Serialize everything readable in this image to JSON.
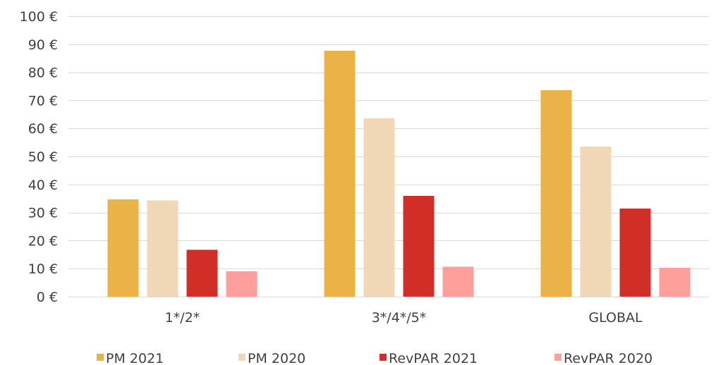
{
  "chart_data": {
    "type": "bar",
    "categories": [
      "1*/2*",
      "3*/4*/5*",
      "GLOBAL"
    ],
    "series": [
      {
        "name": "PM 2021",
        "color": "#EBB247",
        "values": [
          34.7,
          87.7,
          73.6
        ]
      },
      {
        "name": "PM 2020",
        "color": "#F0D7B6",
        "values": [
          34.3,
          63.6,
          53.5
        ]
      },
      {
        "name": "RevPAR 2021",
        "color": "#D12E28",
        "values": [
          16.7,
          35.9,
          31.4
        ]
      },
      {
        "name": "RevPAR 2020",
        "color": "#FF9F9B",
        "values": [
          9.0,
          10.7,
          10.3
        ]
      }
    ],
    "ylim": [
      0,
      100
    ],
    "y_ticks": [
      0,
      10,
      20,
      30,
      40,
      50,
      60,
      70,
      80,
      90,
      100
    ],
    "y_tick_labels": [
      "0 €",
      "10 €",
      "20 €",
      "30 €",
      "40 €",
      "50 €",
      "60 €",
      "70 €",
      "80 €",
      "90 €",
      "100 €"
    ],
    "grid": true,
    "legend_position": "bottom"
  }
}
